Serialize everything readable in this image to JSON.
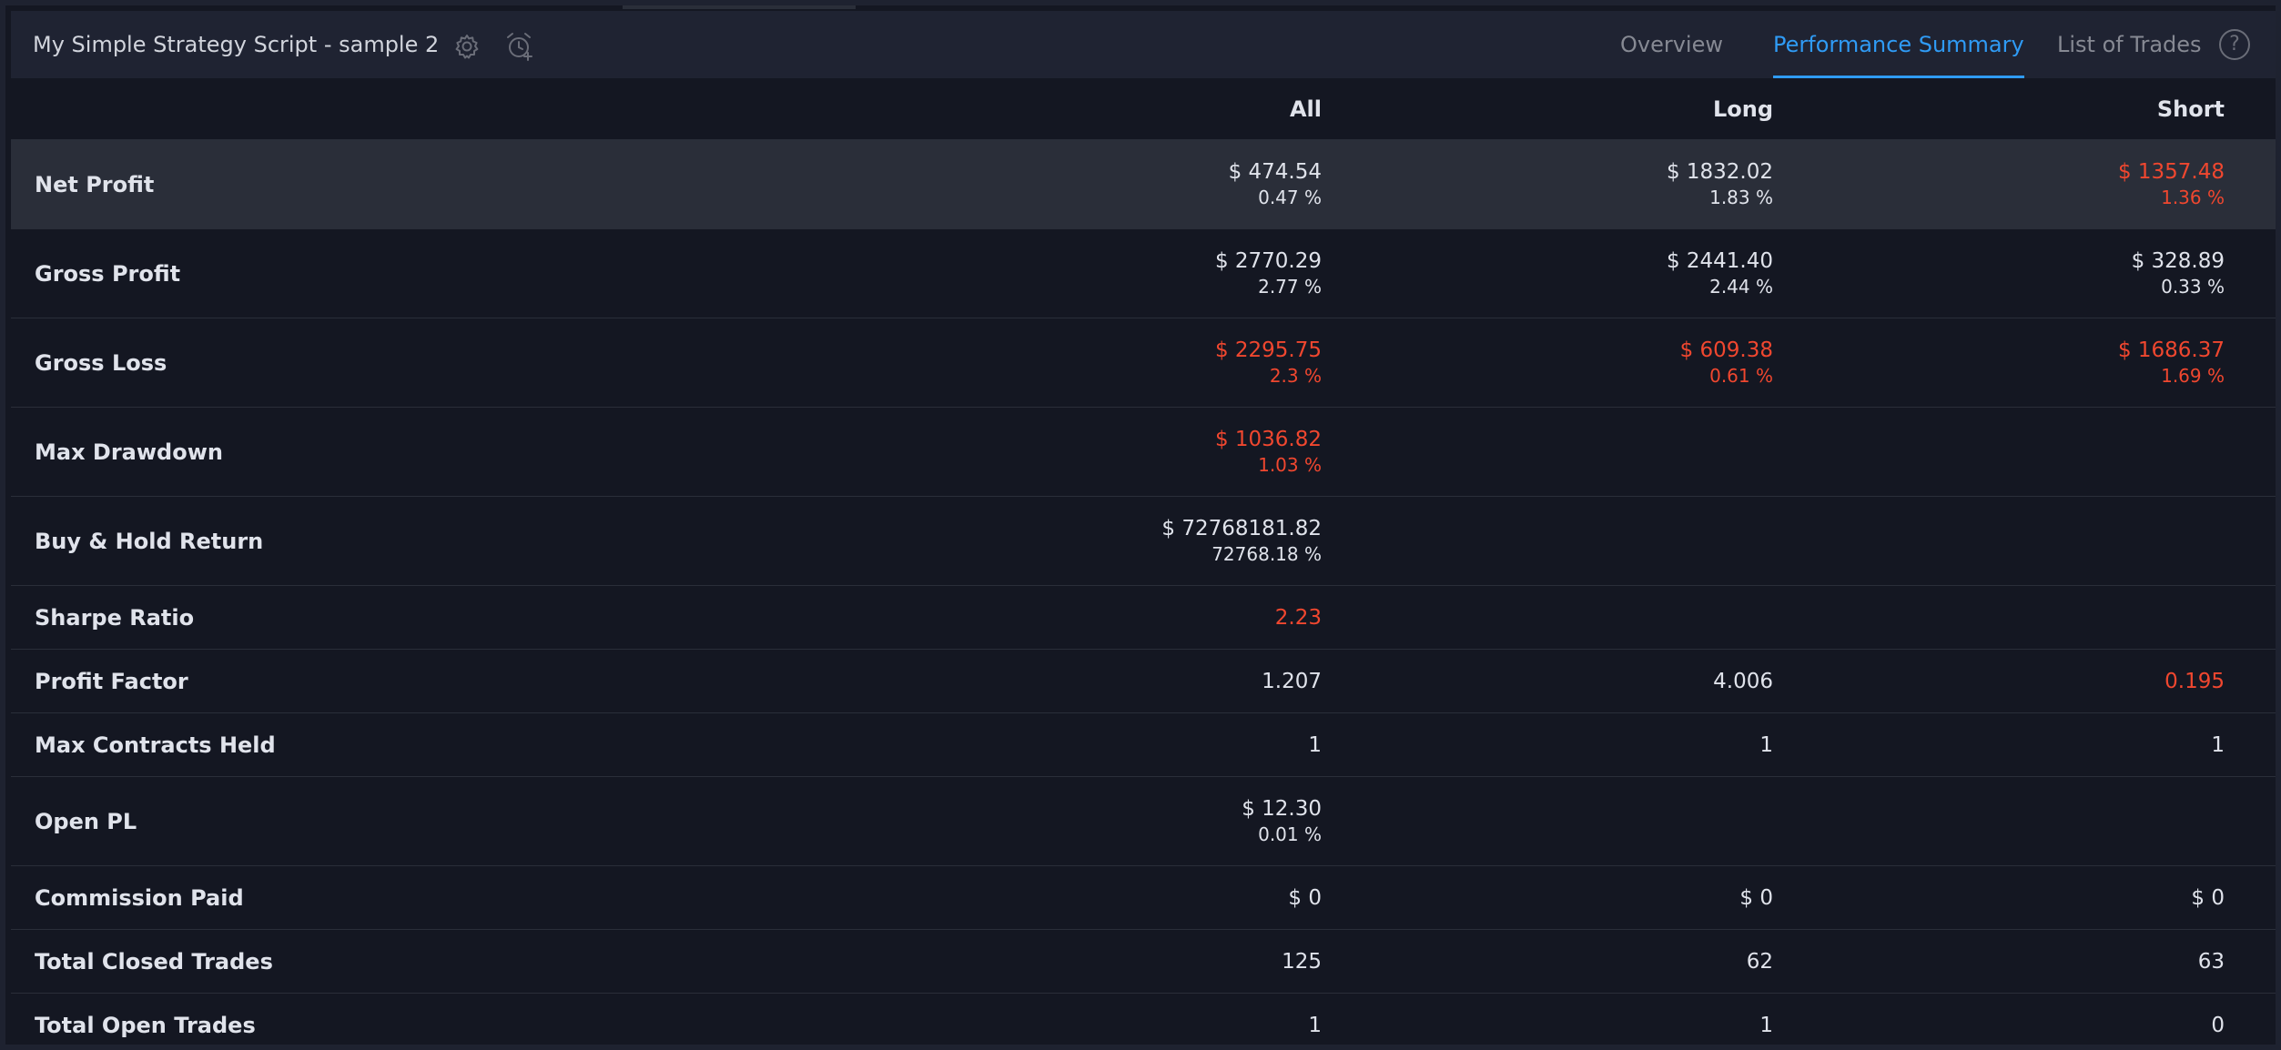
{
  "header": {
    "title": "My Simple Strategy Script - sample 2",
    "tabs": {
      "overview": "Overview",
      "performance_summary": "Performance Summary",
      "list_of_trades": "List of Trades"
    },
    "help": "?"
  },
  "columns": {
    "all": "All",
    "long": "Long",
    "short": "Short"
  },
  "rows": {
    "net_profit": {
      "label": "Net Profit",
      "all": {
        "value": "$ 474.54",
        "pct": "0.47 %"
      },
      "long": {
        "value": "$ 1832.02",
        "pct": "1.83 %"
      },
      "short": {
        "value": "$ 1357.48",
        "pct": "1.36 %"
      }
    },
    "gross_profit": {
      "label": "Gross Profit",
      "all": {
        "value": "$ 2770.29",
        "pct": "2.77 %"
      },
      "long": {
        "value": "$ 2441.40",
        "pct": "2.44 %"
      },
      "short": {
        "value": "$ 328.89",
        "pct": "0.33 %"
      }
    },
    "gross_loss": {
      "label": "Gross Loss",
      "all": {
        "value": "$ 2295.75",
        "pct": "2.3 %"
      },
      "long": {
        "value": "$ 609.38",
        "pct": "0.61 %"
      },
      "short": {
        "value": "$ 1686.37",
        "pct": "1.69 %"
      }
    },
    "max_drawdown": {
      "label": "Max Drawdown",
      "all": {
        "value": "$ 1036.82",
        "pct": "1.03 %"
      }
    },
    "buy_hold_return": {
      "label": "Buy & Hold Return",
      "all": {
        "value": "$ 72768181.82",
        "pct": "72768.18 %"
      }
    },
    "sharpe_ratio": {
      "label": "Sharpe Ratio",
      "all": "2.23"
    },
    "profit_factor": {
      "label": "Profit Factor",
      "all": "1.207",
      "long": "4.006",
      "short": "0.195"
    },
    "max_contracts_held": {
      "label": "Max Contracts Held",
      "all": "1",
      "long": "1",
      "short": "1"
    },
    "open_pl": {
      "label": "Open PL",
      "all": {
        "value": "$ 12.30",
        "pct": "0.01 %"
      }
    },
    "commission_paid": {
      "label": "Commission Paid",
      "all": "$ 0",
      "long": "$ 0",
      "short": "$ 0"
    },
    "total_closed_trades": {
      "label": "Total Closed Trades",
      "all": "125",
      "long": "62",
      "short": "63"
    },
    "total_open_trades": {
      "label": "Total Open Trades",
      "all": "1",
      "long": "1",
      "short": "0"
    }
  },
  "colors": {
    "negative": "#f0472f",
    "accent": "#2f9bf5",
    "text": "#e0e3eb",
    "background": "#141722",
    "header_bg": "#1f2332",
    "highlight_row": "#2a2e39"
  },
  "icons": [
    "gear-icon",
    "alarm-add-icon",
    "help-icon"
  ]
}
